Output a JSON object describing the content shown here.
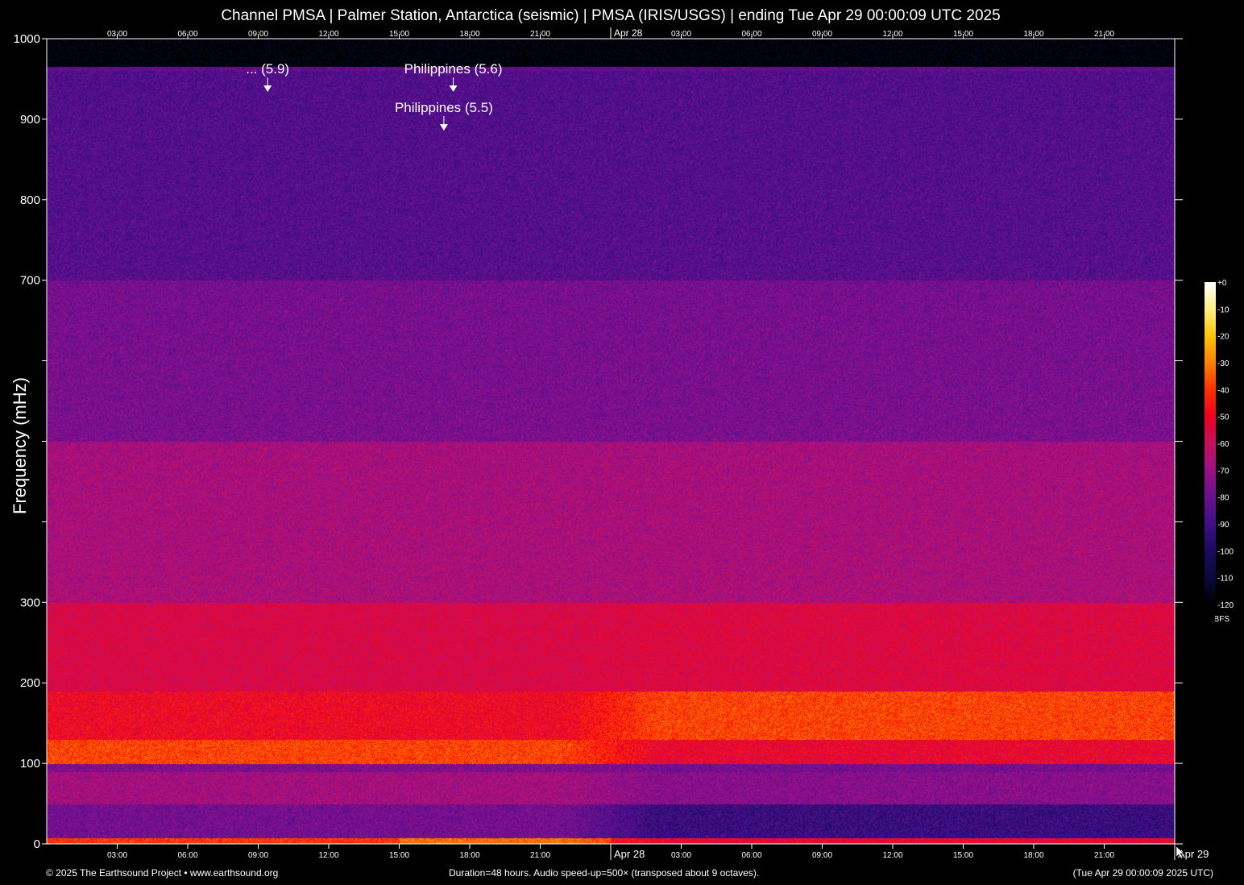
{
  "title": "Channel PMSA | Palmer Station, Antarctica (seismic) | PMSA (IRIS/USGS) | ending Tue Apr 29 00:00:09 UTC 2025",
  "footer": {
    "copyright": "© 2025 The Earthsound Project • www.earthsound.org",
    "duration": "Duration=48 hours. Audio speed-up=500× (transposed about 9 octaves).",
    "end_time": "(Tue Apr 29 00:00:09 2025 UTC)"
  },
  "chart_data": {
    "type": "heatmap",
    "title": "Channel PMSA | Palmer Station, Antarctica (seismic) | PMSA (IRIS/USGS) | ending Tue Apr 29 00:00:09 UTC 2025",
    "ylabel": "Frequency (mHz)",
    "ylim": [
      0,
      1000
    ],
    "xlim_hours": [
      0,
      48
    ],
    "y_ticks": [
      0,
      100,
      200,
      300,
      400,
      500,
      600,
      700,
      800,
      900,
      1000
    ],
    "y_tick_labels": [
      "0",
      "100",
      "200",
      "300",
      "",
      "",
      "",
      "700",
      "800",
      "900",
      "1000"
    ],
    "x_tick_labels": [
      "03:00",
      "06:00",
      "09:00",
      "12:00",
      "15:00",
      "18:00",
      "21:00",
      "Apr 28",
      "03:00",
      "06:00",
      "09:00",
      "12:00",
      "15:00",
      "18:00",
      "21:00"
    ],
    "x_end_label": "Apr 29",
    "colorbar": {
      "label": "dBFS",
      "range": [
        -120,
        0
      ],
      "tick_labels": [
        "+0",
        "-10",
        "-20",
        "-30",
        "-40",
        "-50",
        "-60",
        "-70",
        "-80",
        "-90",
        "-100",
        "-110",
        "-120"
      ],
      "colors": [
        "#000000",
        "#0a0a3a",
        "#1a0a60",
        "#400f88",
        "#6a0f90",
        "#9a1088",
        "#c81060",
        "#f00020",
        "#ff3000",
        "#ff8000",
        "#ffc400",
        "#fff080",
        "#ffffff"
      ]
    },
    "intensity_profile_dbfs": [
      {
        "freq_mhz": [
          0,
          8
        ],
        "day1": -40,
        "day2": -52
      },
      {
        "freq_mhz": [
          8,
          50
        ],
        "day1": -78,
        "day2": -92
      },
      {
        "freq_mhz": [
          50,
          90
        ],
        "day1": -68,
        "day2": -74
      },
      {
        "freq_mhz": [
          90,
          100
        ],
        "day1": -76,
        "day2": -78
      },
      {
        "freq_mhz": [
          100,
          130
        ],
        "day1": -38,
        "day2": -52
      },
      {
        "freq_mhz": [
          130,
          190
        ],
        "day1": -50,
        "day2": -38
      },
      {
        "freq_mhz": [
          190,
          300
        ],
        "day1": -56,
        "day2": -55
      },
      {
        "freq_mhz": [
          300,
          500
        ],
        "day1": -66,
        "day2": -66
      },
      {
        "freq_mhz": [
          500,
          700
        ],
        "day1": -75,
        "day2": -75
      },
      {
        "freq_mhz": [
          700,
          965
        ],
        "day1": -82,
        "day2": -82
      },
      {
        "freq_mhz": [
          965,
          1000
        ],
        "day1": -120,
        "day2": -120
      }
    ],
    "annotations": [
      {
        "text": "... (5.9)",
        "time": "Apr 27 09:24",
        "hours": 9.4,
        "row": 1
      },
      {
        "text": "Philippines (5.6)",
        "time": "Apr 27 17:18",
        "hours": 17.3,
        "row": 1
      },
      {
        "text": "Philippines (5.5)",
        "time": "Apr 27 16:54",
        "hours": 16.9,
        "row": 2
      }
    ]
  }
}
